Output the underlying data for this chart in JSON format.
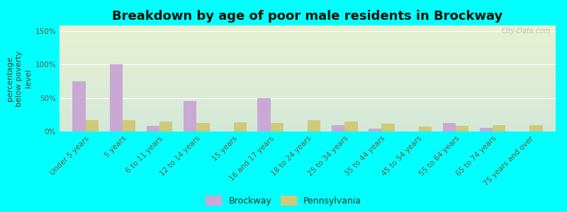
{
  "title": "Breakdown by age of poor male residents in Brockway",
  "ylabel": "percentage\nbelow poverty\nlevel",
  "categories": [
    "Under 5 years",
    "5 years",
    "6 to 11 years",
    "12 to 14 years",
    "15 years",
    "16 and 17 years",
    "18 to 24 years",
    "25 to 34 years",
    "35 to 44 years",
    "45 to 54 years",
    "55 to 64 years",
    "65 to 74 years",
    "75 years and over"
  ],
  "brockway": [
    75,
    100,
    8,
    45,
    0,
    50,
    0,
    10,
    4,
    0,
    13,
    5,
    0
  ],
  "pennsylvania": [
    17,
    17,
    15,
    13,
    14,
    13,
    17,
    15,
    12,
    7,
    8,
    9,
    9
  ],
  "brockway_color": "#c9a8d4",
  "pennsylvania_color": "#cfc97a",
  "background_outer": "#00ffff",
  "background_inner_top": "#e8f0d0",
  "background_inner_bottom": "#d4e8d8",
  "yticks": [
    0,
    50,
    100,
    150
  ],
  "ytick_labels": [
    "0%",
    "50%",
    "100%",
    "150%"
  ],
  "ylim": [
    0,
    158
  ],
  "bar_width": 0.35,
  "title_fontsize": 13,
  "axis_label_fontsize": 8,
  "tick_fontsize": 7.5,
  "legend_fontsize": 9,
  "watermark": "City-Data.com"
}
